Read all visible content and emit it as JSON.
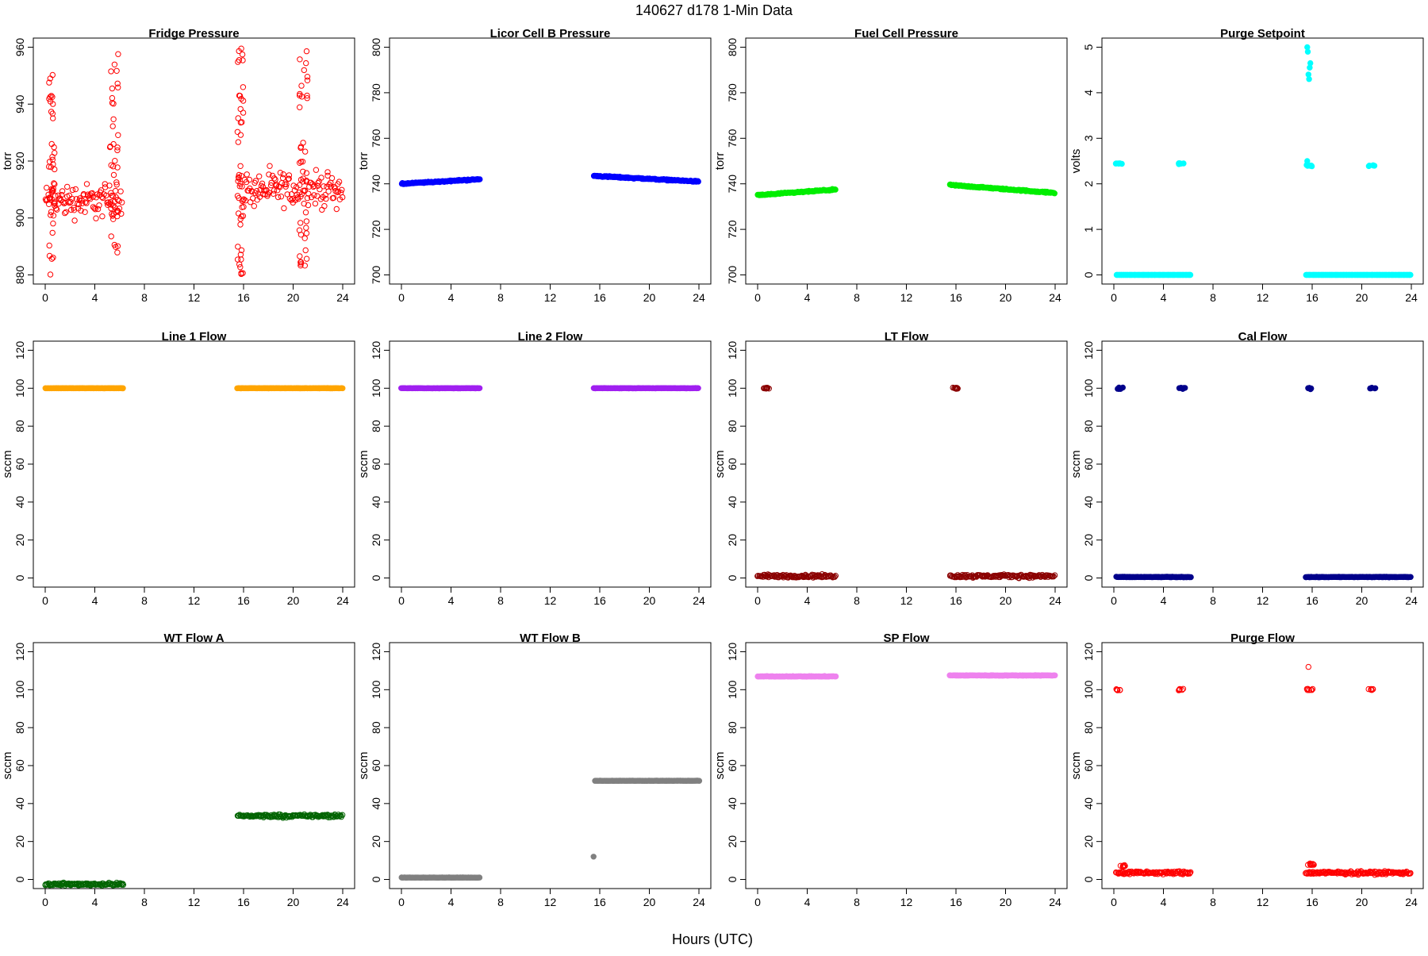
{
  "figure": {
    "title": "140627   d178   1-Min Data",
    "xlabel": "Hours (UTC)"
  },
  "chart_data": [
    {
      "type": "scatter",
      "title": "Fridge Pressure",
      "ylabel": "torr",
      "xlim": [
        0,
        24
      ],
      "ylim": [
        880,
        960
      ],
      "xticks": [
        0,
        4,
        8,
        12,
        16,
        20,
        24
      ],
      "yticks": [
        880,
        900,
        920,
        940,
        960
      ],
      "color": "#ff0000",
      "marker": "open",
      "segments": [
        {
          "x": [
            0,
            6.2
          ],
          "base": 906,
          "noise": 9
        },
        {
          "x": [
            15.5,
            24
          ],
          "base": 910,
          "noise": 9
        }
      ],
      "spikes": [
        {
          "x": [
            0.3,
            0.8
          ],
          "y": [
            880,
            953
          ]
        },
        {
          "x": [
            5.2,
            5.9
          ],
          "y": [
            884,
            962
          ]
        },
        {
          "x": [
            15.5,
            16.0
          ],
          "y": [
            880,
            962
          ]
        },
        {
          "x": [
            20.5,
            21.2
          ],
          "y": [
            882,
            960
          ]
        }
      ]
    },
    {
      "type": "scatter",
      "title": "Licor Cell B Pressure",
      "ylabel": "torr",
      "xlim": [
        0,
        24
      ],
      "ylim": [
        700,
        800
      ],
      "xticks": [
        0,
        4,
        8,
        12,
        16,
        20,
        24
      ],
      "yticks": [
        700,
        720,
        740,
        760,
        780,
        800
      ],
      "color": "#0000ff",
      "marker": "filled",
      "segments": [
        {
          "x": [
            0,
            6.3
          ],
          "y": [
            740,
            742
          ],
          "noise": 0.4
        },
        {
          "x": [
            15.5,
            24
          ],
          "y": [
            743.5,
            741
          ],
          "noise": 0.4
        }
      ]
    },
    {
      "type": "scatter",
      "title": "Fuel Cell Pressure",
      "ylabel": "torr",
      "xlim": [
        0,
        24
      ],
      "ylim": [
        700,
        800
      ],
      "xticks": [
        0,
        4,
        8,
        12,
        16,
        20,
        24
      ],
      "yticks": [
        700,
        720,
        740,
        760,
        780,
        800
      ],
      "color": "#00ee00",
      "marker": "filled",
      "segments": [
        {
          "x": [
            0,
            6.3
          ],
          "y": [
            735,
            737.5
          ],
          "noise": 0.4
        },
        {
          "x": [
            15.5,
            24
          ],
          "y": [
            739.5,
            736
          ],
          "noise": 0.4
        }
      ]
    },
    {
      "type": "scatter",
      "title": "Purge Setpoint",
      "ylabel": "volts",
      "xlim": [
        0,
        24
      ],
      "ylim": [
        0,
        5
      ],
      "xticks": [
        0,
        4,
        8,
        12,
        16,
        20,
        24
      ],
      "yticks": [
        0,
        1,
        2,
        3,
        4,
        5
      ],
      "color": "#00ffff",
      "marker": "filled",
      "segments": [
        {
          "x": [
            0.2,
            6.2
          ],
          "base": 0,
          "noise": 0
        },
        {
          "x": [
            15.5,
            24
          ],
          "base": 0,
          "noise": 0
        }
      ],
      "clusters": [
        {
          "x": 0.4,
          "y": 2.45,
          "n": 6
        },
        {
          "x": 5.4,
          "y": 2.45,
          "n": 6
        },
        {
          "x": 15.8,
          "y": 2.4,
          "n": 8
        },
        {
          "x": 20.8,
          "y": 2.4,
          "n": 6
        }
      ],
      "extra_points": [
        {
          "x": 15.6,
          "y": 5.0
        },
        {
          "x": 15.65,
          "y": 4.9
        },
        {
          "x": 15.7,
          "y": 4.4
        },
        {
          "x": 15.75,
          "y": 4.3
        },
        {
          "x": 15.8,
          "y": 4.55
        },
        {
          "x": 15.85,
          "y": 4.65
        },
        {
          "x": 15.6,
          "y": 2.5
        }
      ]
    },
    {
      "type": "scatter",
      "title": "Line 1 Flow",
      "ylabel": "sccm",
      "xlim": [
        0,
        24
      ],
      "ylim": [
        0,
        120
      ],
      "xticks": [
        0,
        4,
        8,
        12,
        16,
        20,
        24
      ],
      "yticks": [
        0,
        20,
        40,
        60,
        80,
        100,
        120
      ],
      "color": "#ffa500",
      "marker": "filled",
      "segments": [
        {
          "x": [
            0,
            6.3
          ],
          "base": 100,
          "noise": 0.1
        },
        {
          "x": [
            15.5,
            24
          ],
          "base": 100,
          "noise": 0.1
        }
      ]
    },
    {
      "type": "scatter",
      "title": "Line 2 Flow",
      "ylabel": "sccm",
      "xlim": [
        0,
        24
      ],
      "ylim": [
        0,
        120
      ],
      "xticks": [
        0,
        4,
        8,
        12,
        16,
        20,
        24
      ],
      "yticks": [
        0,
        20,
        40,
        60,
        80,
        100,
        120
      ],
      "color": "#a020f0",
      "marker": "filled",
      "segments": [
        {
          "x": [
            0,
            6.3
          ],
          "base": 100,
          "noise": 0.1
        },
        {
          "x": [
            15.5,
            24
          ],
          "base": 100,
          "noise": 0.1
        }
      ]
    },
    {
      "type": "scatter",
      "title": "LT Flow",
      "ylabel": "sccm",
      "xlim": [
        0,
        24
      ],
      "ylim": [
        0,
        120
      ],
      "xticks": [
        0,
        4,
        8,
        12,
        16,
        20,
        24
      ],
      "yticks": [
        0,
        20,
        40,
        60,
        80,
        100,
        120
      ],
      "color": "#8b0000",
      "marker": "open",
      "segments": [
        {
          "x": [
            0,
            6.3
          ],
          "base": 1,
          "noise": 1.2
        },
        {
          "x": [
            15.5,
            24
          ],
          "base": 1,
          "noise": 1.2
        }
      ],
      "clusters": [
        {
          "x": 0.7,
          "y": 100,
          "n": 12
        },
        {
          "x": 16.0,
          "y": 100,
          "n": 12
        }
      ]
    },
    {
      "type": "scatter",
      "title": "Cal Flow",
      "ylabel": "sccm",
      "xlim": [
        0,
        24
      ],
      "ylim": [
        0,
        120
      ],
      "xticks": [
        0,
        4,
        8,
        12,
        16,
        20,
        24
      ],
      "yticks": [
        0,
        20,
        40,
        60,
        80,
        100,
        120
      ],
      "color": "#00008b",
      "marker": "filled",
      "segments": [
        {
          "x": [
            0.2,
            6.2
          ],
          "base": 0.5,
          "noise": 0.2
        },
        {
          "x": [
            15.5,
            24
          ],
          "base": 0.5,
          "noise": 0.2
        }
      ],
      "clusters": [
        {
          "x": 0.5,
          "y": 100,
          "n": 6
        },
        {
          "x": 5.5,
          "y": 100,
          "n": 6
        },
        {
          "x": 15.9,
          "y": 100,
          "n": 6
        },
        {
          "x": 20.9,
          "y": 100,
          "n": 6
        }
      ]
    },
    {
      "type": "scatter",
      "title": "WT Flow A",
      "ylabel": "sccm",
      "xlim": [
        0,
        24
      ],
      "ylim": [
        0,
        120
      ],
      "xticks": [
        0,
        4,
        8,
        12,
        16,
        20,
        24
      ],
      "yticks": [
        0,
        20,
        40,
        60,
        80,
        100,
        120
      ],
      "color": "#006400",
      "marker": "open",
      "segments": [
        {
          "x": [
            0,
            6.3
          ],
          "base": -2.5,
          "noise": 1.0
        },
        {
          "x": [
            15.5,
            24
          ],
          "base": 33.5,
          "noise": 1.2
        }
      ]
    },
    {
      "type": "scatter",
      "title": "WT Flow B",
      "ylabel": "sccm",
      "xlim": [
        0,
        24
      ],
      "ylim": [
        0,
        120
      ],
      "xticks": [
        0,
        4,
        8,
        12,
        16,
        20,
        24
      ],
      "yticks": [
        0,
        20,
        40,
        60,
        80,
        100,
        120
      ],
      "color": "#808080",
      "marker": "filled",
      "segments": [
        {
          "x": [
            0,
            6.3
          ],
          "base": 1,
          "noise": 0.1
        },
        {
          "x": [
            15.6,
            24
          ],
          "base": 52,
          "noise": 0.1
        }
      ],
      "extra_points": [
        {
          "x": 15.5,
          "y": 12
        }
      ]
    },
    {
      "type": "scatter",
      "title": "SP Flow",
      "ylabel": "sccm",
      "xlim": [
        0,
        24
      ],
      "ylim": [
        0,
        120
      ],
      "xticks": [
        0,
        4,
        8,
        12,
        16,
        20,
        24
      ],
      "yticks": [
        0,
        20,
        40,
        60,
        80,
        100,
        120
      ],
      "color": "#ee82ee",
      "marker": "filled",
      "segments": [
        {
          "x": [
            0,
            6.3
          ],
          "base": 107,
          "noise": 0.2
        },
        {
          "x": [
            15.5,
            24
          ],
          "base": 107.5,
          "noise": 0.2
        }
      ]
    },
    {
      "type": "scatter",
      "title": "Purge Flow",
      "ylabel": "sccm",
      "xlim": [
        0,
        24
      ],
      "ylim": [
        0,
        120
      ],
      "xticks": [
        0,
        4,
        8,
        12,
        16,
        20,
        24
      ],
      "yticks": [
        0,
        20,
        40,
        60,
        80,
        100,
        120
      ],
      "color": "#ff0000",
      "marker": "open",
      "segments": [
        {
          "x": [
            0.2,
            6.2
          ],
          "base": 3.5,
          "noise": 1.2
        },
        {
          "x": [
            15.5,
            24
          ],
          "base": 3.5,
          "noise": 1.2
        }
      ],
      "clusters": [
        {
          "x": 0.4,
          "y": 100,
          "n": 6
        },
        {
          "x": 5.4,
          "y": 100,
          "n": 6
        },
        {
          "x": 15.8,
          "y": 100,
          "n": 8
        },
        {
          "x": 20.8,
          "y": 100,
          "n": 6
        },
        {
          "x": 0.7,
          "y": 7,
          "n": 8
        },
        {
          "x": 15.9,
          "y": 8,
          "n": 10
        }
      ],
      "extra_points": [
        {
          "x": 15.7,
          "y": 112
        }
      ]
    }
  ]
}
